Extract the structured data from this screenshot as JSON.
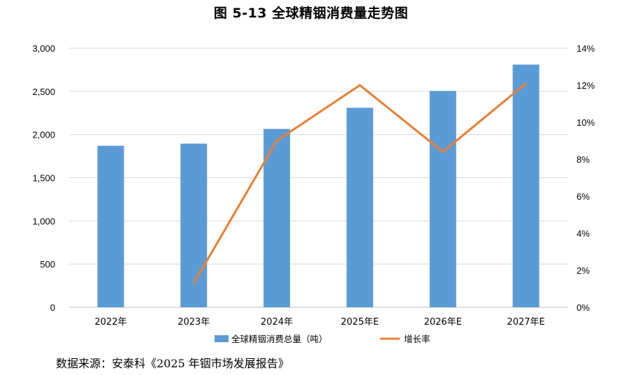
{
  "chart_data": {
    "type": "bar",
    "title": "图 5-13 全球精铟消费量走势图",
    "categories": [
      "2022年",
      "2023年",
      "2024年",
      "2025年E",
      "2026年E",
      "2027年E"
    ],
    "series": [
      {
        "name": "全球精铟消费总量（吨）",
        "type": "bar",
        "axis": "left",
        "values": [
          1870,
          1895,
          2065,
          2310,
          2505,
          2810
        ],
        "color": "#5b9bd5"
      },
      {
        "name": "增长率",
        "type": "line",
        "axis": "right",
        "values": [
          null,
          1.3,
          9.0,
          12.0,
          8.4,
          12.1
        ],
        "color": "#ed7d31"
      }
    ],
    "y_left": {
      "min": 0,
      "max": 3000,
      "ticks": [
        "0",
        "500",
        "1,000",
        "1,500",
        "2,000",
        "2,500",
        "3,000"
      ]
    },
    "y_right": {
      "min": 0,
      "max": 14,
      "ticks": [
        "0%",
        "2%",
        "4%",
        "6%",
        "8%",
        "10%",
        "12%",
        "14%"
      ]
    },
    "grid": true,
    "legend_position": "bottom"
  },
  "source_note": "数据来源：安泰科《2025 年铟市场发展报告》"
}
